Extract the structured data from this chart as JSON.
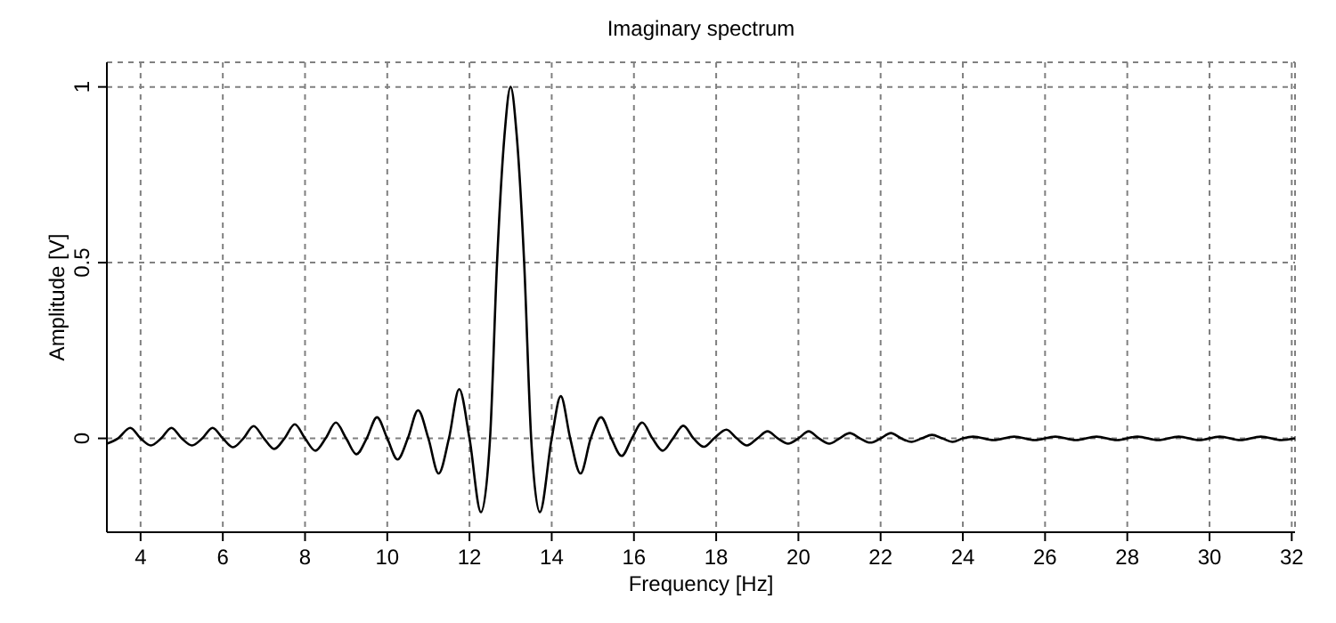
{
  "chart_data": {
    "type": "line",
    "title": "Imaginary spectrum",
    "xlabel": "Frequency [Hz]",
    "ylabel": "Amplitude [V]",
    "xlim": [
      3.18,
      32.08
    ],
    "xticks": [
      4,
      6,
      8,
      10,
      12,
      14,
      16,
      18,
      20,
      22,
      24,
      26,
      28,
      30,
      32
    ],
    "ylim": [
      -0.267,
      1.07
    ],
    "yticks": [
      0,
      0.5,
      1
    ],
    "grid": true,
    "marker": "none",
    "line_style": "solid",
    "series": [
      {
        "color": "#000000",
        "x": [
          3.18,
          3.45,
          3.75,
          4,
          4.25,
          4.5,
          4.75,
          5,
          5.25,
          5.5,
          5.75,
          6,
          6.25,
          6.5,
          6.75,
          7,
          7.25,
          7.5,
          7.75,
          8,
          8.25,
          8.5,
          8.75,
          9,
          9.25,
          9.5,
          9.75,
          10,
          10.25,
          10.5,
          10.75,
          11,
          11.25,
          11.5,
          11.75,
          12,
          12.28,
          12.5,
          12.67,
          12.85,
          13,
          13.15,
          13.33,
          13.5,
          13.71,
          14,
          14.22,
          14.45,
          14.7,
          14.95,
          15.2,
          15.45,
          15.7,
          15.95,
          16.2,
          16.45,
          16.7,
          16.95,
          17.2,
          17.45,
          17.7,
          17.95,
          18.25,
          18.5,
          18.75,
          19,
          19.25,
          19.5,
          19.75,
          20,
          20.25,
          20.5,
          20.75,
          21,
          21.25,
          21.5,
          21.75,
          22,
          22.25,
          22.5,
          22.75,
          23,
          23.25,
          23.5,
          23.75,
          24,
          24.25,
          24.75,
          25.25,
          25.75,
          26.25,
          26.75,
          27.25,
          27.75,
          28.25,
          28.75,
          29.25,
          29.75,
          30.25,
          30.75,
          31.25,
          31.75,
          32.08
        ],
        "values": [
          -0.015,
          0,
          0.03,
          0,
          -0.02,
          0,
          0.03,
          0,
          -0.02,
          0,
          0.03,
          0,
          -0.025,
          0,
          0.035,
          0,
          -0.03,
          0,
          0.04,
          0,
          -0.035,
          0,
          0.045,
          0,
          -0.045,
          0,
          0.06,
          0,
          -0.06,
          0,
          0.08,
          0,
          -0.1,
          0,
          0.14,
          0,
          -0.21,
          0,
          0.5,
          0.86,
          1,
          0.86,
          0.5,
          0,
          -0.21,
          0,
          0.12,
          0,
          -0.1,
          0,
          0.06,
          0,
          -0.05,
          0,
          0.045,
          0,
          -0.035,
          0,
          0.036,
          0,
          -0.024,
          0,
          0.025,
          0,
          -0.02,
          0,
          0.02,
          0,
          -0.015,
          0,
          0.02,
          0,
          -0.015,
          0,
          0.015,
          0,
          -0.012,
          0,
          0.015,
          0,
          -0.01,
          0,
          0.01,
          0,
          -0.01,
          0,
          0.005,
          -0.005,
          0.005,
          -0.005,
          0.005,
          -0.005,
          0.005,
          -0.005,
          0.005,
          -0.005,
          0.005,
          -0.005,
          0.005,
          -0.005,
          0.005,
          -0.005,
          0
        ]
      }
    ]
  }
}
